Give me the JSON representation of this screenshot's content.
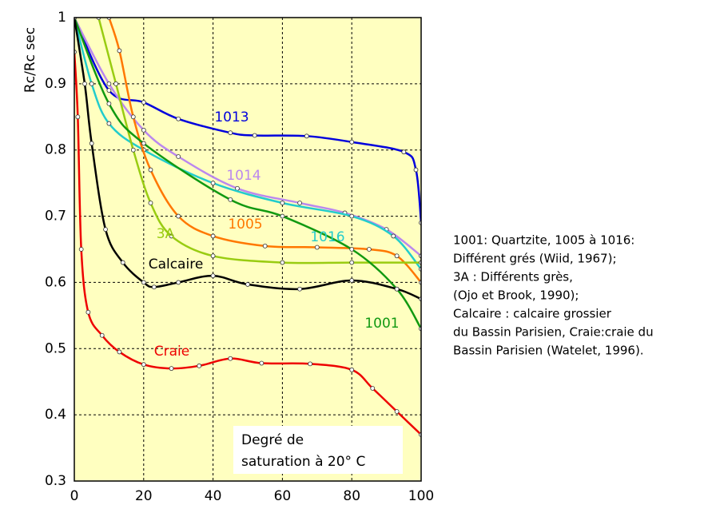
{
  "chart_data": {
    "type": "line",
    "y_label": "Rc/Rc sec",
    "annotation": [
      "Degré de",
      "saturation à 20° C"
    ],
    "note": [
      "1001: Quartzite, 1005 à 1016:",
      "Différent grés (Wiid, 1967);",
      "3A : Différents grès,",
      "(Ojo et Brook, 1990);",
      "Calcaire : calcaire grossier",
      "du Bassin Parisien, Craie:craie du",
      "Bassin Parisien (Watelet, 1996)."
    ],
    "xlim": [
      0,
      100
    ],
    "xticks": [
      0,
      20,
      40,
      60,
      80,
      100
    ],
    "ylim": [
      0.3,
      1
    ],
    "yticks": [
      0.3,
      0.4,
      0.5,
      0.6,
      0.7,
      0.8,
      0.9,
      1
    ],
    "grid": true,
    "background": "#ffffc0",
    "series": [
      {
        "name": "1013",
        "color": "#0000dd",
        "x": [
          0,
          10,
          20,
          30,
          45,
          52,
          67,
          80,
          95,
          98.5,
          100
        ],
        "values": [
          1,
          0.89,
          0.872,
          0.847,
          0.826,
          0.822,
          0.821,
          0.812,
          0.797,
          0.77,
          0.69
        ]
      },
      {
        "name": "1014",
        "color": "#bb88ee",
        "x": [
          0,
          10,
          20,
          30,
          47,
          65,
          78,
          90,
          100
        ],
        "values": [
          1,
          0.9,
          0.83,
          0.79,
          0.742,
          0.72,
          0.705,
          0.68,
          0.64
        ]
      },
      {
        "name": "1016",
        "color": "#22cccc",
        "x": [
          0,
          5,
          10,
          20,
          40,
          60,
          80,
          92,
          100
        ],
        "values": [
          1,
          0.9,
          0.84,
          0.8,
          0.75,
          0.72,
          0.7,
          0.67,
          0.62
        ]
      },
      {
        "name": "1005",
        "color": "#ff7700",
        "x": [
          10,
          13,
          17,
          22,
          30,
          40,
          55,
          70,
          85,
          93,
          100
        ],
        "values": [
          1,
          0.95,
          0.85,
          0.77,
          0.7,
          0.67,
          0.655,
          0.653,
          0.65,
          0.64,
          0.6
        ]
      },
      {
        "name": "3A",
        "color": "#99cc11",
        "x": [
          7,
          12,
          17,
          22,
          28,
          40,
          60,
          80,
          100
        ],
        "values": [
          1,
          0.9,
          0.8,
          0.72,
          0.67,
          0.64,
          0.63,
          0.63,
          0.63
        ]
      },
      {
        "name": "1001",
        "color": "#119911",
        "x": [
          0,
          10,
          20,
          45,
          60,
          80,
          93,
          100
        ],
        "values": [
          1,
          0.87,
          0.81,
          0.725,
          0.7,
          0.65,
          0.59,
          0.53
        ]
      },
      {
        "name": "Calcaire",
        "color": "#000000",
        "x": [
          0,
          3,
          5,
          9,
          14,
          20,
          23,
          30,
          40,
          50,
          65,
          80,
          93,
          100
        ],
        "values": [
          1,
          0.9,
          0.81,
          0.68,
          0.63,
          0.6,
          0.593,
          0.6,
          0.61,
          0.597,
          0.59,
          0.603,
          0.59,
          0.575
        ]
      },
      {
        "name": "Craie",
        "color": "#ee0000",
        "x": [
          0,
          1,
          2,
          4,
          8,
          13,
          20,
          28,
          36,
          45,
          54,
          68,
          80,
          86,
          93,
          100
        ],
        "values": [
          0.948,
          0.85,
          0.65,
          0.555,
          0.52,
          0.495,
          0.476,
          0.47,
          0.474,
          0.485,
          0.478,
          0.477,
          0.468,
          0.44,
          0.405,
          0.37
        ]
      }
    ]
  }
}
